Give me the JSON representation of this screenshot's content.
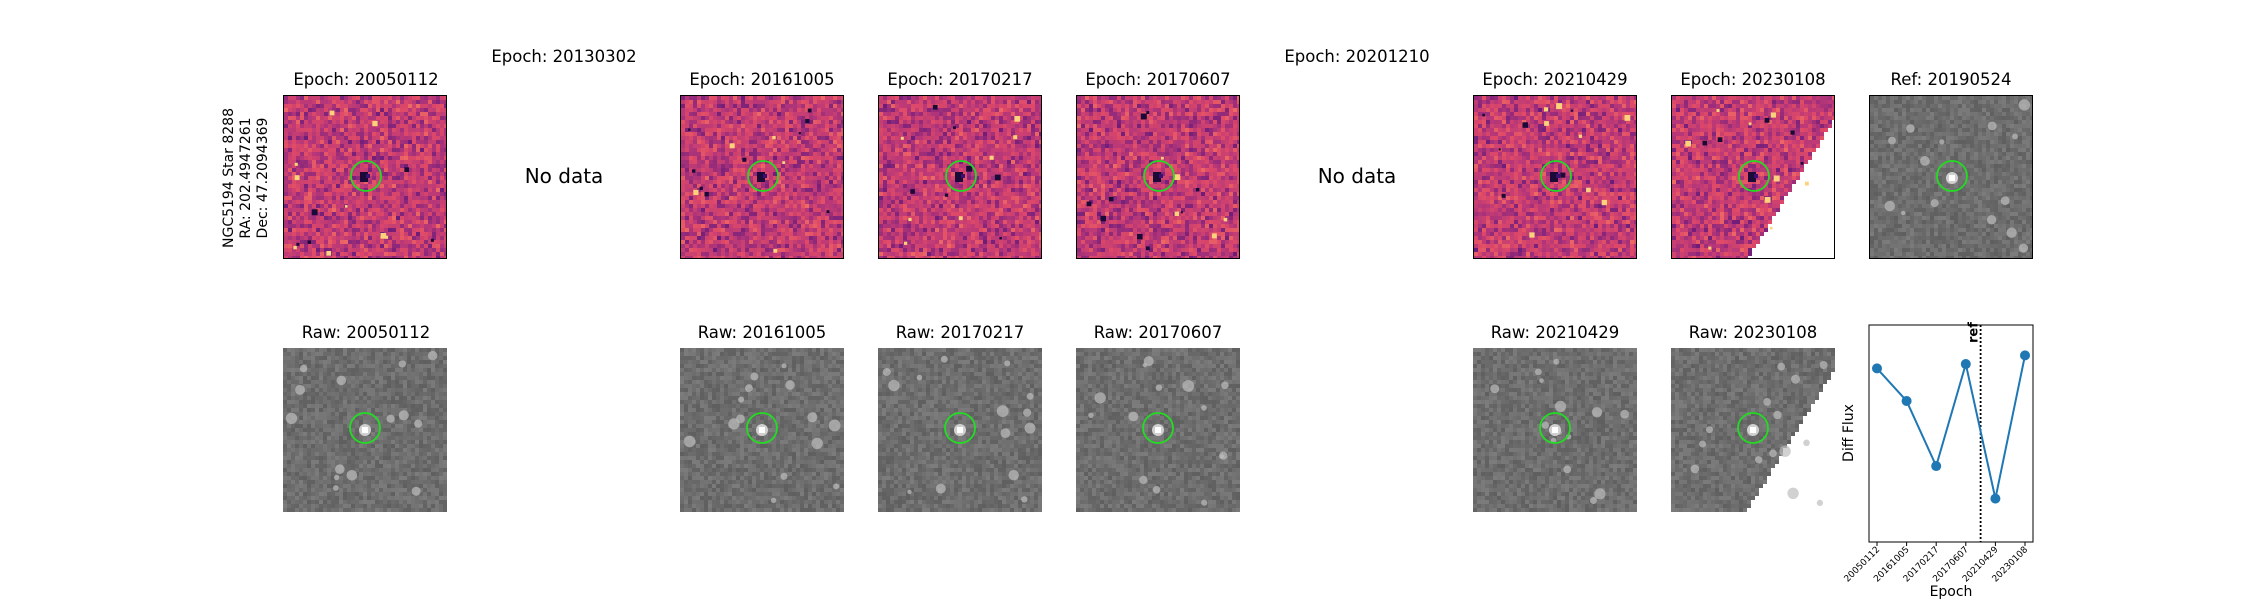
{
  "star_label": {
    "line1": "NGC5194 Star 8288",
    "line2": "RA: 202.4947261",
    "line3": "Dec: 47.2094369"
  },
  "diff_row": [
    {
      "title": "Epoch: 20050112",
      "has_data": true,
      "colormap": "magma"
    },
    {
      "title": "Epoch: 20130302",
      "has_data": false,
      "nodata_text": "No data"
    },
    {
      "title": "Epoch: 20161005",
      "has_data": true,
      "colormap": "magma"
    },
    {
      "title": "Epoch: 20170217",
      "has_data": true,
      "colormap": "magma"
    },
    {
      "title": "Epoch: 20170607",
      "has_data": true,
      "colormap": "magma"
    },
    {
      "title": "Epoch: 20201210",
      "has_data": false,
      "nodata_text": "No data"
    },
    {
      "title": "Epoch: 20210429",
      "has_data": true,
      "colormap": "magma"
    },
    {
      "title": "Epoch: 20230108",
      "has_data": true,
      "colormap": "magma"
    },
    {
      "title": "Ref: 20190524",
      "has_data": true,
      "colormap": "gray"
    }
  ],
  "raw_row": [
    {
      "title": "Raw: 20050112"
    },
    {
      "title": "Raw: 20161005"
    },
    {
      "title": "Raw: 20170217"
    },
    {
      "title": "Raw: 20170607"
    },
    {
      "title": "Raw: 20210429"
    },
    {
      "title": "Raw: 20230108"
    }
  ],
  "marker_color": "#22dd22",
  "chart_data": {
    "type": "line",
    "xlabel": "Epoch",
    "ylabel": "Diff Flux",
    "categories": [
      "20050112",
      "20161005",
      "20170217",
      "20170607",
      "20210429",
      "20230108"
    ],
    "values": [
      0.8,
      0.65,
      0.35,
      0.82,
      0.2,
      0.86
    ],
    "ylim": [
      0.0,
      1.0
    ],
    "reference_line": {
      "label": "ref",
      "position_between": [
        "20170607",
        "20210429"
      ],
      "style": "dotted"
    },
    "series_color": "#1f77b4",
    "grid": false
  }
}
